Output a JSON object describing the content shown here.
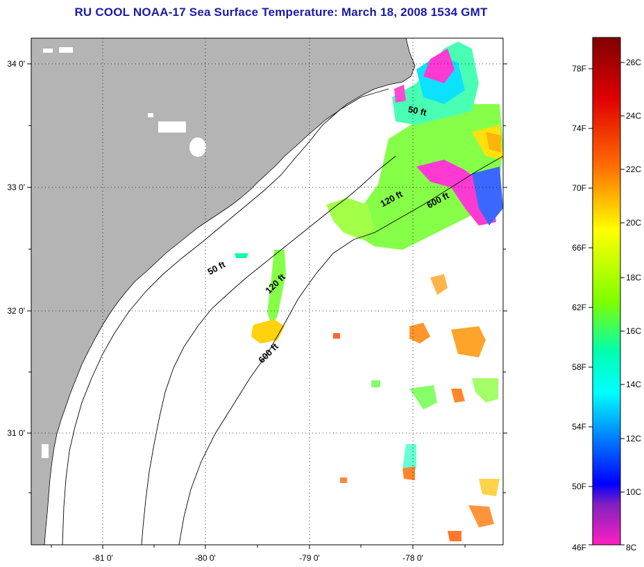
{
  "title": "RU COOL  NOAA-17  Sea Surface Temperature:  March 18, 2008 1534 GMT",
  "map": {
    "lat_ticks": [
      "34 0'",
      "33 0'",
      "32 0'",
      "31 0'"
    ],
    "lon_ticks": [
      "-81 0'",
      "-80 0'",
      "-79 0'",
      "-78 0'"
    ],
    "depth_contours": [
      "50 ft",
      "120 ft",
      "600 ft"
    ],
    "colors": {
      "land": "#b4b4b4",
      "ocean": "#ffffff",
      "frame": "#000000"
    }
  },
  "colorbar": {
    "fahrenheit": [
      "78F",
      "74F",
      "70F",
      "66F",
      "62F",
      "58F",
      "54F",
      "50F",
      "46F"
    ],
    "celsius": [
      "26C",
      "24C",
      "22C",
      "20C",
      "18C",
      "16C",
      "14C",
      "12C",
      "10C",
      "8C"
    ],
    "gradient": [
      "#800000",
      "#ff0000",
      "#ff8000",
      "#ffff00",
      "#80ff00",
      "#00ff80",
      "#00ffff",
      "#0080ff",
      "#0000ff",
      "#a000c0",
      "#ff20c0"
    ]
  }
}
